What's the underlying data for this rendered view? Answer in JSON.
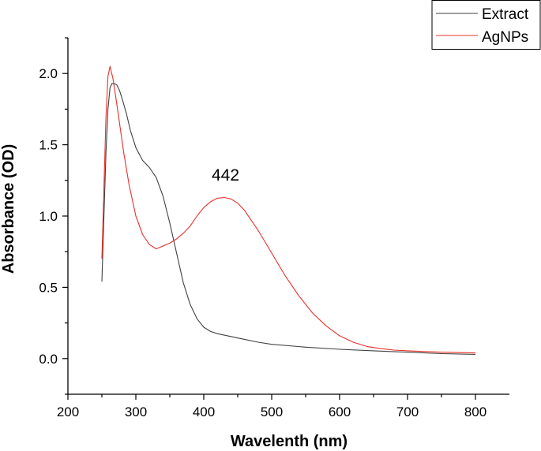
{
  "chart_data": {
    "type": "line",
    "title": "",
    "xlabel": "Wavelenth (nm)",
    "ylabel": "Absorbance (OD)",
    "xlim": [
      200,
      850
    ],
    "ylim": [
      -0.25,
      2.25
    ],
    "x_ticks": [
      200,
      300,
      400,
      500,
      600,
      700,
      800
    ],
    "x_tick_labels": [
      "200",
      "300",
      "400",
      "500",
      "600",
      "700",
      "800"
    ],
    "y_ticks": [
      0.0,
      0.5,
      1.0,
      1.5,
      2.0
    ],
    "y_tick_labels": [
      "0.0",
      "0.5",
      "1.0",
      "1.5",
      "2.0"
    ],
    "grid": false,
    "legend_position": "top-right",
    "annotations": [
      {
        "text": "442",
        "x": 432,
        "y": 1.25
      }
    ],
    "series": [
      {
        "name": "Extract",
        "color": "#404040",
        "points": [
          [
            250,
            0.54
          ],
          [
            253,
            1.0
          ],
          [
            256,
            1.45
          ],
          [
            259,
            1.75
          ],
          [
            262,
            1.9
          ],
          [
            265,
            1.93
          ],
          [
            268,
            1.93
          ],
          [
            272,
            1.92
          ],
          [
            276,
            1.88
          ],
          [
            280,
            1.82
          ],
          [
            286,
            1.72
          ],
          [
            292,
            1.6
          ],
          [
            300,
            1.48
          ],
          [
            310,
            1.39
          ],
          [
            320,
            1.34
          ],
          [
            330,
            1.27
          ],
          [
            340,
            1.14
          ],
          [
            350,
            0.95
          ],
          [
            360,
            0.74
          ],
          [
            370,
            0.53
          ],
          [
            380,
            0.38
          ],
          [
            390,
            0.28
          ],
          [
            400,
            0.22
          ],
          [
            410,
            0.19
          ],
          [
            420,
            0.175
          ],
          [
            440,
            0.155
          ],
          [
            460,
            0.135
          ],
          [
            480,
            0.115
          ],
          [
            500,
            0.1
          ],
          [
            550,
            0.08
          ],
          [
            600,
            0.065
          ],
          [
            650,
            0.055
          ],
          [
            700,
            0.045
          ],
          [
            750,
            0.035
          ],
          [
            800,
            0.03
          ]
        ]
      },
      {
        "name": "AgNPs",
        "color": "#e8302a",
        "points": [
          [
            250,
            0.7
          ],
          [
            253,
            1.2
          ],
          [
            256,
            1.7
          ],
          [
            259,
            1.98
          ],
          [
            262,
            2.05
          ],
          [
            266,
            1.97
          ],
          [
            270,
            1.85
          ],
          [
            276,
            1.65
          ],
          [
            282,
            1.45
          ],
          [
            290,
            1.22
          ],
          [
            300,
            1.0
          ],
          [
            310,
            0.87
          ],
          [
            320,
            0.8
          ],
          [
            330,
            0.77
          ],
          [
            340,
            0.79
          ],
          [
            350,
            0.81
          ],
          [
            360,
            0.84
          ],
          [
            370,
            0.88
          ],
          [
            380,
            0.93
          ],
          [
            390,
            1.0
          ],
          [
            400,
            1.06
          ],
          [
            410,
            1.1
          ],
          [
            420,
            1.125
          ],
          [
            430,
            1.13
          ],
          [
            440,
            1.12
          ],
          [
            450,
            1.09
          ],
          [
            460,
            1.04
          ],
          [
            470,
            0.97
          ],
          [
            480,
            0.9
          ],
          [
            490,
            0.82
          ],
          [
            500,
            0.74
          ],
          [
            520,
            0.58
          ],
          [
            540,
            0.44
          ],
          [
            560,
            0.32
          ],
          [
            580,
            0.23
          ],
          [
            600,
            0.16
          ],
          [
            620,
            0.115
          ],
          [
            640,
            0.085
          ],
          [
            660,
            0.07
          ],
          [
            680,
            0.06
          ],
          [
            700,
            0.055
          ],
          [
            750,
            0.045
          ],
          [
            800,
            0.04
          ]
        ]
      }
    ]
  }
}
